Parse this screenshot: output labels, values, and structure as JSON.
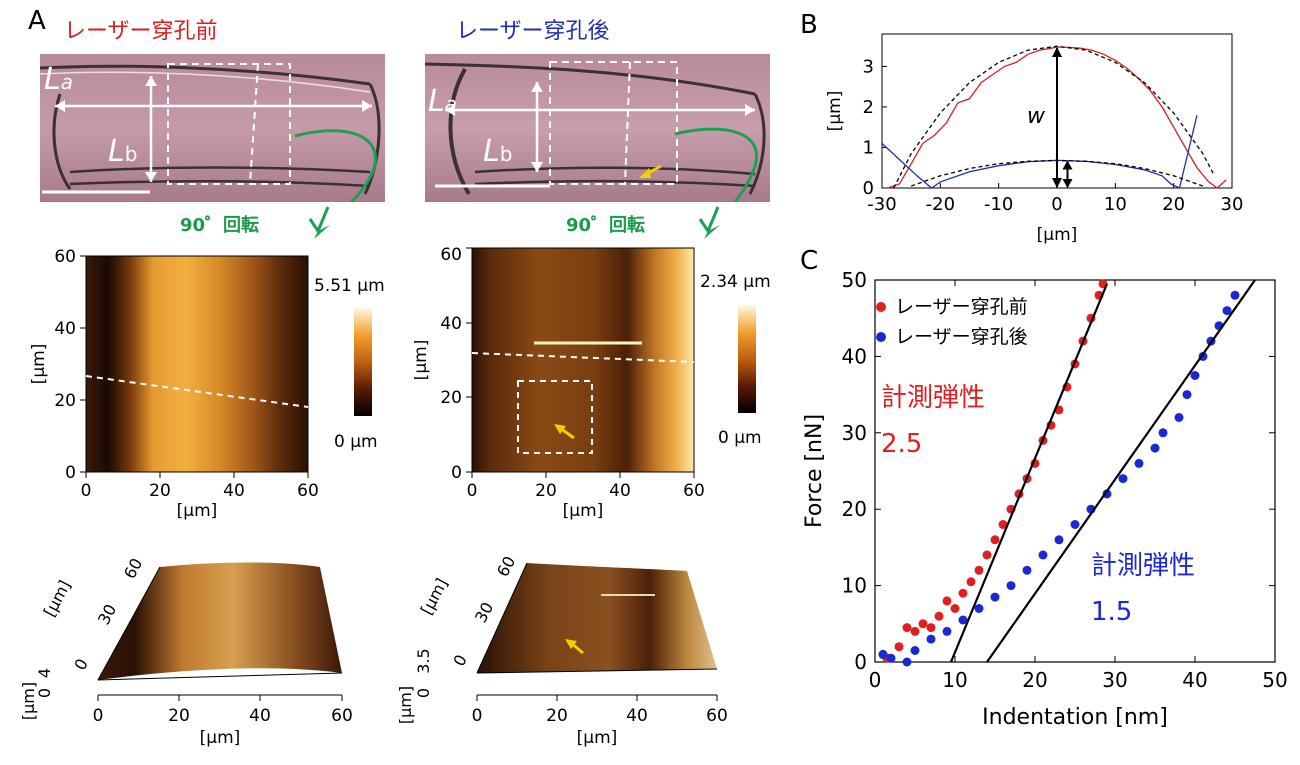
{
  "panels": {
    "A": {
      "letter": "A"
    },
    "B": {
      "letter": "B"
    },
    "C": {
      "letter": "C"
    }
  },
  "titles": {
    "before": "レーザー穿孔前",
    "after": "レーザー穿孔後"
  },
  "micrograph": {
    "La_main": "L",
    "La_sub": "a",
    "Lb_main": "L",
    "Lb_sub": "b"
  },
  "rotation": {
    "label": "90゜回転"
  },
  "afm_left": {
    "colorbar_max": "5.51 µm",
    "colorbar_min": "0 µm",
    "x_ticks": [
      "0",
      "20",
      "40",
      "60"
    ],
    "y_ticks": [
      "0",
      "20",
      "40",
      "60"
    ],
    "xlabel": "[µm]",
    "ylabel": "[µm]"
  },
  "afm_right": {
    "colorbar_max": "2.34 µm",
    "colorbar_min": "0 µm",
    "x_ticks": [
      "0",
      "20",
      "40",
      "60"
    ],
    "y_ticks": [
      "0",
      "20",
      "40",
      "60"
    ],
    "xlabel": "[µm]",
    "ylabel": "[µm]"
  },
  "afm3d_left": {
    "x_ticks": [
      "0",
      "20",
      "40",
      "60"
    ],
    "y_ticks": [
      "0",
      "30",
      "60"
    ],
    "z_ticks": [
      "0",
      "4"
    ],
    "xlabel": "[µm]",
    "ylabel": "[µm]",
    "zlabel": "[µm]"
  },
  "afm3d_right": {
    "x_ticks": [
      "0",
      "20",
      "40",
      "60"
    ],
    "y_ticks": [
      "0",
      "30",
      "60"
    ],
    "z_ticks": [
      "0",
      "3.5"
    ],
    "xlabel": "[µm]",
    "ylabel": "[µm]",
    "zlabel": "[µm]"
  },
  "chart_data": [
    {
      "type": "line",
      "panel": "B",
      "xlabel": "[µm]",
      "ylabel": "[µm]",
      "xlim": [
        -30,
        30
      ],
      "ylim": [
        0,
        3.8
      ],
      "x_ticks": [
        -30,
        -20,
        -10,
        0,
        10,
        20,
        30
      ],
      "y_ticks": [
        0,
        1,
        2,
        3
      ],
      "annotation": "w",
      "series": [
        {
          "color": "#d62020",
          "style": "solid",
          "x": [
            -29,
            -27,
            -25,
            -23,
            -21,
            -19,
            -17,
            -15,
            -13,
            -11,
            -9,
            -7,
            -5,
            -3,
            -1,
            0,
            2,
            4,
            6,
            8,
            10,
            12,
            14,
            16,
            18,
            20,
            22,
            24,
            26,
            27.5,
            29
          ],
          "y": [
            0.0,
            0.1,
            0.6,
            1.1,
            1.3,
            1.6,
            2.1,
            2.2,
            2.6,
            2.8,
            3.0,
            3.1,
            3.3,
            3.4,
            3.45,
            3.48,
            3.47,
            3.45,
            3.4,
            3.3,
            3.15,
            2.95,
            2.7,
            2.4,
            2.0,
            1.5,
            1.0,
            0.5,
            0.15,
            0.0,
            0.2
          ]
        },
        {
          "color": "#000000",
          "style": "dashed",
          "x": [
            -28,
            -25,
            -20,
            -15,
            -10,
            -5,
            0,
            5,
            10,
            15,
            20,
            25,
            27
          ],
          "y": [
            0.0,
            0.85,
            1.85,
            2.6,
            3.1,
            3.4,
            3.5,
            3.4,
            3.1,
            2.6,
            1.85,
            0.85,
            0.3
          ]
        },
        {
          "color": "#1f2fb0",
          "style": "solid",
          "x": [
            -30,
            -27,
            -24,
            -21.5,
            -20,
            -15,
            -10,
            -5,
            0,
            5,
            10,
            15,
            18,
            19.5,
            21,
            22.5,
            24
          ],
          "y": [
            1.1,
            0.7,
            0.3,
            0.0,
            0.15,
            0.4,
            0.55,
            0.65,
            0.68,
            0.66,
            0.58,
            0.45,
            0.3,
            0.1,
            0.0,
            0.9,
            1.8
          ]
        },
        {
          "color": "#000000",
          "style": "dashed",
          "x": [
            -25,
            -20,
            -15,
            -10,
            -5,
            0,
            5,
            10,
            15,
            20,
            25
          ],
          "y": [
            0.05,
            0.3,
            0.48,
            0.6,
            0.66,
            0.68,
            0.66,
            0.6,
            0.48,
            0.3,
            0.05
          ]
        }
      ]
    },
    {
      "type": "scatter",
      "panel": "C",
      "xlabel": "Indentation [nm]",
      "ylabel": "Force [nN]",
      "xlim": [
        0,
        50
      ],
      "ylim": [
        0,
        50
      ],
      "x_ticks": [
        0,
        10,
        20,
        30,
        40,
        50
      ],
      "y_ticks": [
        0,
        10,
        20,
        30,
        40,
        50
      ],
      "legend": {
        "placement": "top-left"
      },
      "series": [
        {
          "name": "レーザー穿孔前",
          "color": "#e02020",
          "annotation_label": "計測弾性",
          "annotation_value": "2.5",
          "points": [
            [
              1,
              1
            ],
            [
              1.5,
              0.5
            ],
            [
              3,
              2
            ],
            [
              4,
              4.5
            ],
            [
              5,
              4
            ],
            [
              6,
              5
            ],
            [
              7,
              4.5
            ],
            [
              8,
              6
            ],
            [
              9,
              8
            ],
            [
              10,
              7
            ],
            [
              11,
              9
            ],
            [
              12,
              10.5
            ],
            [
              13,
              12
            ],
            [
              14,
              14
            ],
            [
              15,
              16
            ],
            [
              16,
              18
            ],
            [
              17,
              20
            ],
            [
              18,
              22
            ],
            [
              19,
              24
            ],
            [
              20,
              26
            ],
            [
              21,
              29
            ],
            [
              22,
              31
            ],
            [
              23,
              33
            ],
            [
              24,
              36
            ],
            [
              25,
              39
            ],
            [
              26,
              42
            ],
            [
              27,
              45
            ],
            [
              28,
              48
            ],
            [
              28.5,
              49.5
            ]
          ],
          "fit": [
            [
              9.5,
              0
            ],
            [
              29,
              49.5
            ]
          ]
        },
        {
          "name": "レーザー穿孔後",
          "color": "#1a28d6",
          "annotation_label": "計測弾性",
          "annotation_value": "1.5",
          "points": [
            [
              1,
              1
            ],
            [
              2,
              0.5
            ],
            [
              4,
              0
            ],
            [
              5,
              1.5
            ],
            [
              7,
              3
            ],
            [
              9,
              4
            ],
            [
              11,
              5.5
            ],
            [
              13,
              7
            ],
            [
              15,
              8.5
            ],
            [
              17,
              10
            ],
            [
              19,
              12
            ],
            [
              21,
              14
            ],
            [
              23,
              16
            ],
            [
              25,
              18
            ],
            [
              27,
              20
            ],
            [
              29,
              22
            ],
            [
              31,
              24
            ],
            [
              33,
              26
            ],
            [
              35,
              28
            ],
            [
              36,
              30
            ],
            [
              38,
              32
            ],
            [
              39,
              35
            ],
            [
              40,
              37.5
            ],
            [
              41,
              40
            ],
            [
              42,
              42
            ],
            [
              43,
              44
            ],
            [
              44,
              46
            ],
            [
              45,
              48
            ]
          ],
          "fit": [
            [
              14,
              0
            ],
            [
              47.5,
              50
            ]
          ]
        }
      ]
    }
  ]
}
